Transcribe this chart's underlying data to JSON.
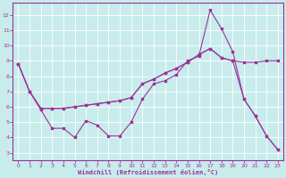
{
  "bg_color": "#c8ecec",
  "line_color": "#993399",
  "grid_color": "#aadddd",
  "xlabel": "Windchill (Refroidissement éolien,°C)",
  "xlim": [
    -0.5,
    23.5
  ],
  "ylim": [
    2.5,
    12.8
  ],
  "x_ticks": [
    0,
    1,
    2,
    3,
    4,
    5,
    6,
    7,
    8,
    9,
    10,
    11,
    12,
    13,
    14,
    15,
    16,
    17,
    18,
    19,
    20,
    21,
    22,
    23
  ],
  "y_ticks": [
    3,
    4,
    5,
    6,
    7,
    8,
    9,
    10,
    11,
    12
  ],
  "line1_x": [
    0,
    1,
    2,
    3,
    4,
    5,
    6,
    7,
    8,
    9,
    10,
    11,
    12,
    13,
    14,
    15,
    16,
    17,
    18,
    19,
    20,
    21,
    22,
    23
  ],
  "line1_y": [
    8.8,
    7.0,
    5.8,
    4.6,
    4.6,
    4.0,
    5.1,
    4.8,
    4.1,
    4.1,
    5.0,
    6.5,
    7.5,
    7.7,
    8.1,
    9.0,
    9.3,
    12.3,
    11.1,
    9.6,
    6.5,
    5.4,
    4.1,
    3.2
  ],
  "line2_x": [
    0,
    1,
    2,
    3,
    4,
    5,
    6,
    7,
    8,
    9,
    10,
    11,
    12,
    13,
    14,
    15,
    16,
    17,
    18,
    19,
    20,
    21,
    22,
    23
  ],
  "line2_y": [
    8.8,
    7.0,
    5.9,
    5.9,
    5.9,
    6.0,
    6.1,
    6.2,
    6.3,
    6.4,
    6.6,
    7.5,
    7.8,
    8.2,
    8.5,
    8.9,
    9.4,
    9.8,
    9.2,
    9.0,
    8.9,
    8.9,
    9.0,
    9.0
  ],
  "line3_x": [
    0,
    1,
    2,
    3,
    4,
    5,
    6,
    7,
    8,
    9,
    10,
    11,
    12,
    13,
    14,
    15,
    16,
    17,
    18,
    19,
    20,
    21,
    22,
    23
  ],
  "line3_y": [
    8.8,
    7.0,
    5.9,
    5.9,
    5.9,
    6.0,
    6.1,
    6.2,
    6.3,
    6.4,
    6.6,
    7.5,
    7.8,
    8.2,
    8.5,
    8.9,
    9.4,
    9.8,
    9.2,
    9.0,
    6.5,
    5.4,
    4.1,
    3.2
  ]
}
